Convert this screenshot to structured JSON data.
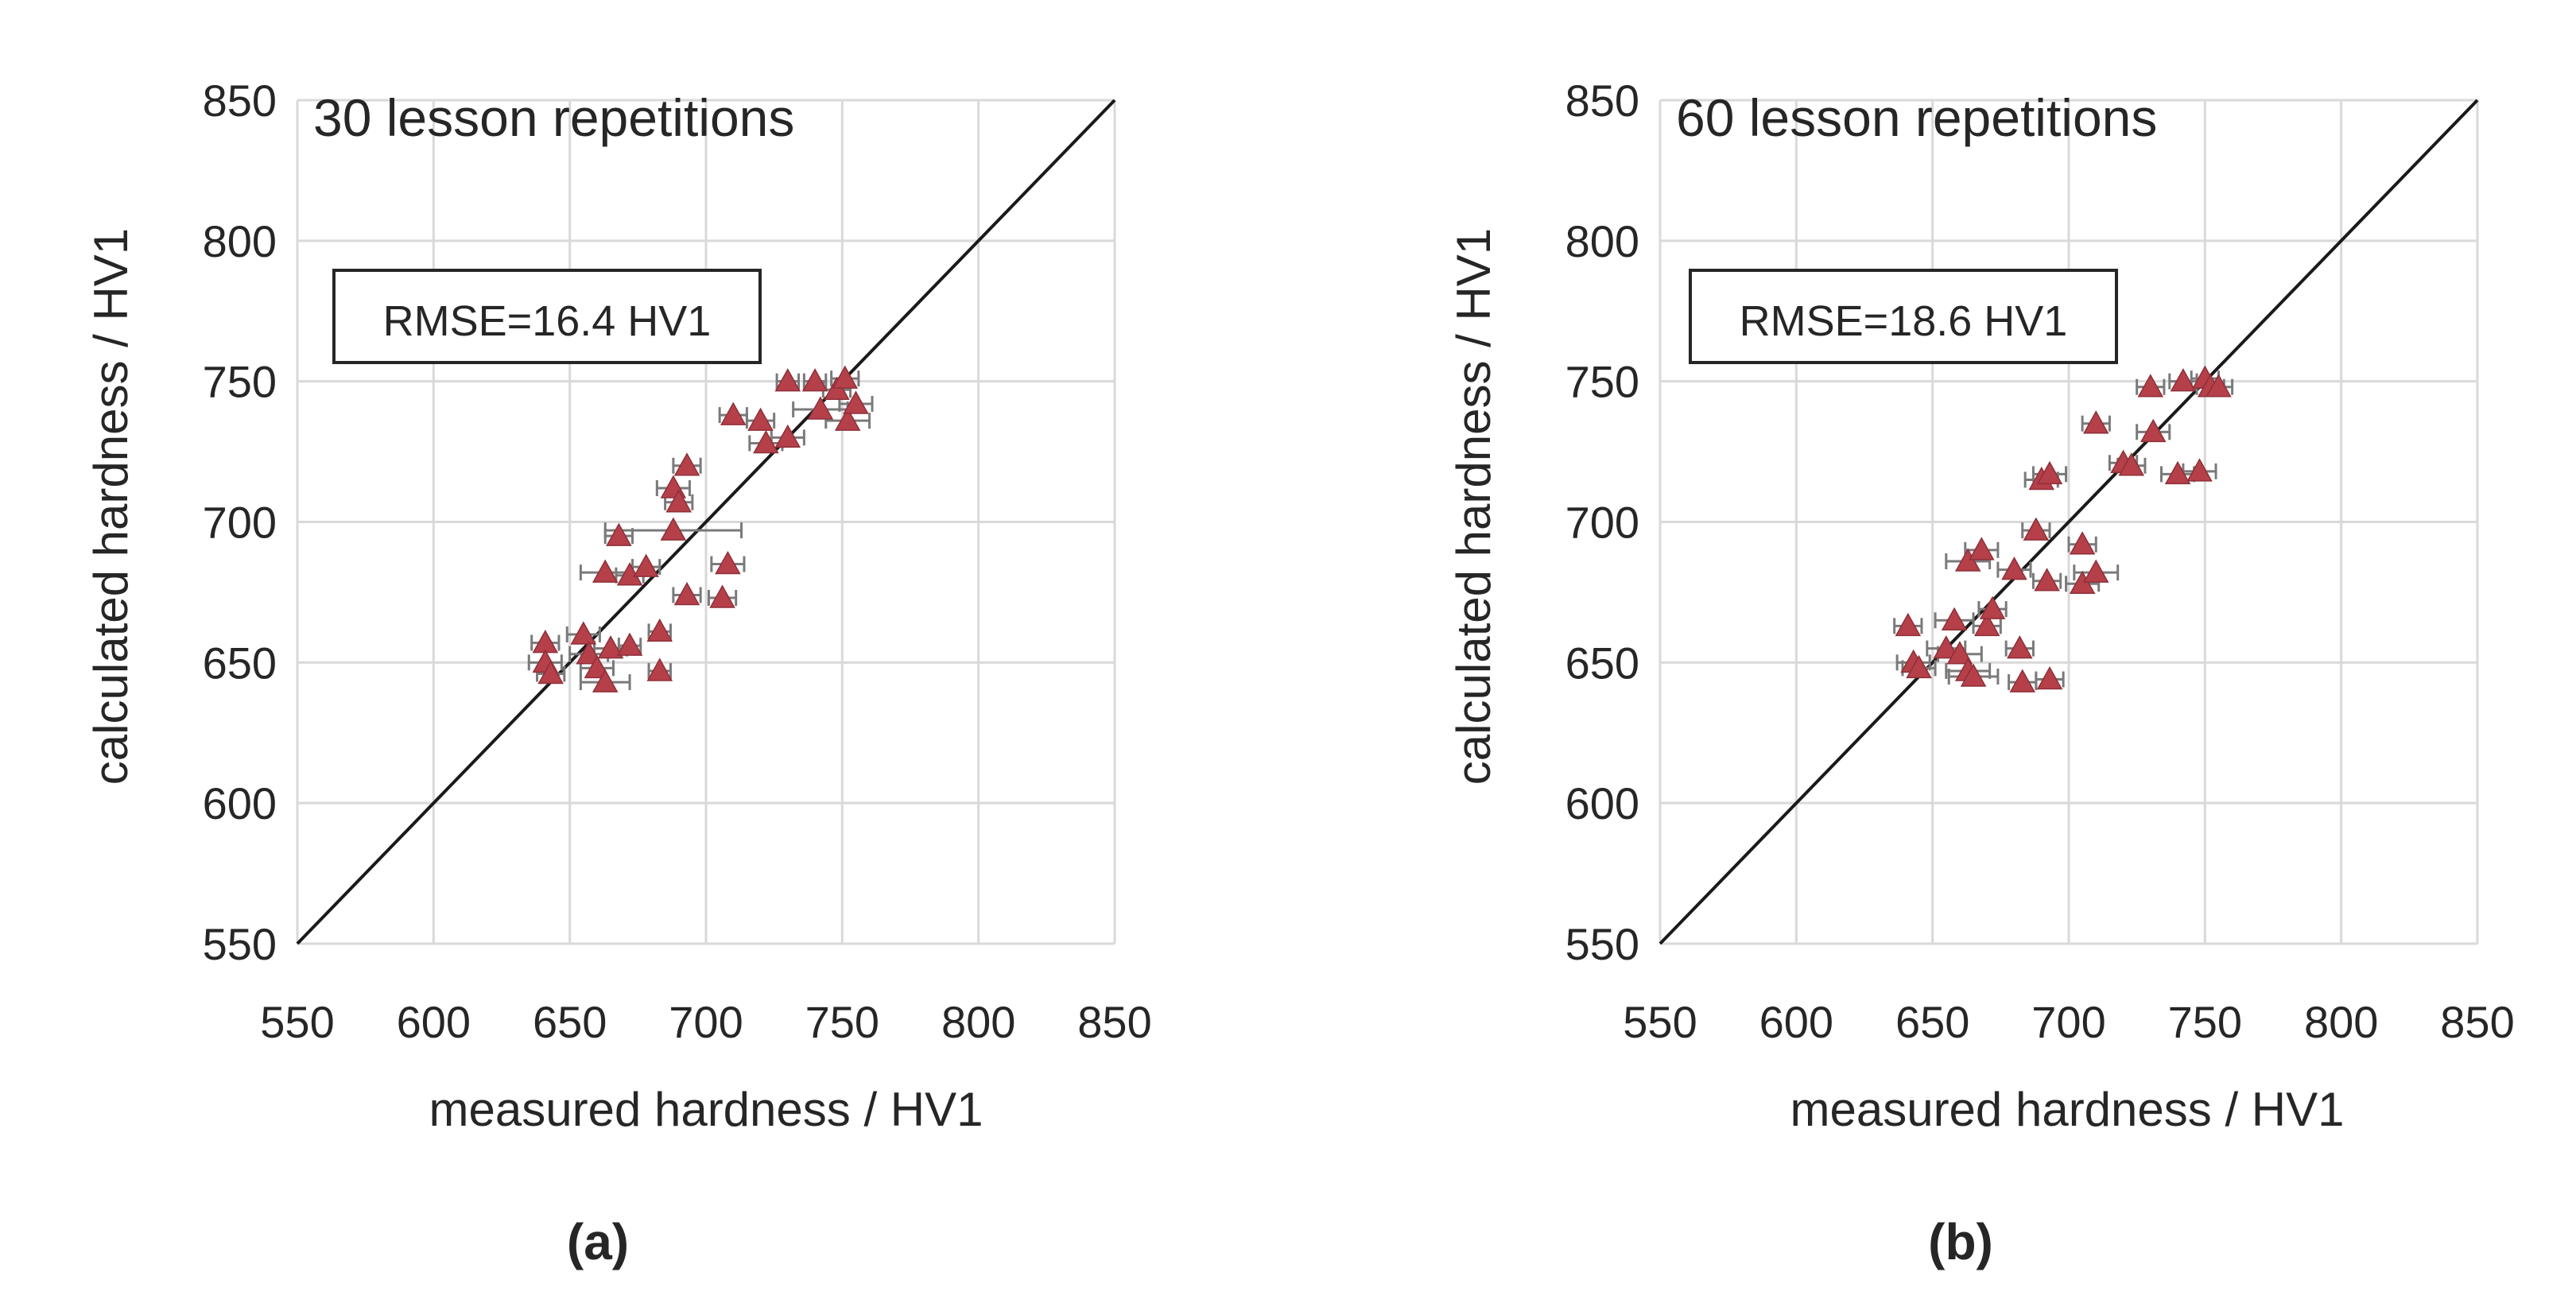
{
  "figure": {
    "panel_labels": [
      "(a)",
      "(b)"
    ]
  },
  "chart_data": [
    {
      "type": "scatter",
      "panel": "(a)",
      "title": "30 lesson repetitions",
      "annotation": "RMSE=16.4 HV1",
      "xlabel": "measured hardness / HV1",
      "ylabel": "calculated hardness / HV1",
      "xlim": [
        550,
        850
      ],
      "ylim": [
        550,
        850
      ],
      "xticks": [
        550,
        600,
        650,
        700,
        750,
        800,
        850
      ],
      "yticks": [
        550,
        600,
        650,
        700,
        750,
        800,
        850
      ],
      "grid": true,
      "reference_line": "y = x",
      "marker": "triangle",
      "marker_color": "#b5404a",
      "error_bar_color": "#7a7a7a",
      "series": [
        {
          "name": "calculated vs measured",
          "points": [
            {
              "x": 641,
              "y": 657,
              "xerr": 5
            },
            {
              "x": 641,
              "y": 650,
              "xerr": 6
            },
            {
              "x": 643,
              "y": 646,
              "xerr": 5
            },
            {
              "x": 655,
              "y": 660,
              "xerr": 6
            },
            {
              "x": 657,
              "y": 653,
              "xerr": 7
            },
            {
              "x": 660,
              "y": 648,
              "xerr": 6
            },
            {
              "x": 663,
              "y": 643,
              "xerr": 9
            },
            {
              "x": 665,
              "y": 655,
              "xerr": 6
            },
            {
              "x": 672,
              "y": 656,
              "xerr": 4
            },
            {
              "x": 683,
              "y": 661,
              "xerr": 4
            },
            {
              "x": 683,
              "y": 647,
              "xerr": 4
            },
            {
              "x": 663,
              "y": 682,
              "xerr": 9
            },
            {
              "x": 668,
              "y": 695,
              "xerr": 5
            },
            {
              "x": 672,
              "y": 681,
              "xerr": 5
            },
            {
              "x": 678,
              "y": 684,
              "xerr": 5
            },
            {
              "x": 688,
              "y": 697,
              "xerr": 25
            },
            {
              "x": 693,
              "y": 674,
              "xerr": 5
            },
            {
              "x": 706,
              "y": 673,
              "xerr": 5
            },
            {
              "x": 708,
              "y": 685,
              "xerr": 6
            },
            {
              "x": 688,
              "y": 712,
              "xerr": 6
            },
            {
              "x": 690,
              "y": 707,
              "xerr": 5
            },
            {
              "x": 693,
              "y": 720,
              "xerr": 5
            },
            {
              "x": 710,
              "y": 738,
              "xerr": 5
            },
            {
              "x": 720,
              "y": 736,
              "xerr": 5
            },
            {
              "x": 722,
              "y": 728,
              "xerr": 6
            },
            {
              "x": 730,
              "y": 730,
              "xerr": 6
            },
            {
              "x": 730,
              "y": 750,
              "xerr": 4
            },
            {
              "x": 740,
              "y": 750,
              "xerr": 4
            },
            {
              "x": 742,
              "y": 740,
              "xerr": 10
            },
            {
              "x": 748,
              "y": 747,
              "xerr": 5
            },
            {
              "x": 751,
              "y": 751,
              "xerr": 5
            },
            {
              "x": 752,
              "y": 736,
              "xerr": 8
            },
            {
              "x": 755,
              "y": 742,
              "xerr": 6
            }
          ]
        }
      ]
    },
    {
      "type": "scatter",
      "panel": "(b)",
      "title": "60 lesson repetitions",
      "annotation": "RMSE=18.6 HV1",
      "xlabel": "measured hardness / HV1",
      "ylabel": "calculated hardness / HV1",
      "xlim": [
        550,
        850
      ],
      "ylim": [
        550,
        850
      ],
      "xticks": [
        550,
        600,
        650,
        700,
        750,
        800,
        850
      ],
      "yticks": [
        550,
        600,
        650,
        700,
        750,
        800,
        850
      ],
      "grid": true,
      "reference_line": "y = x",
      "marker": "triangle",
      "marker_color": "#b5404a",
      "error_bar_color": "#7a7a7a",
      "series": [
        {
          "name": "calculated vs measured",
          "points": [
            {
              "x": 641,
              "y": 663,
              "xerr": 5
            },
            {
              "x": 643,
              "y": 650,
              "xerr": 6
            },
            {
              "x": 645,
              "y": 648,
              "xerr": 6
            },
            {
              "x": 655,
              "y": 655,
              "xerr": 7
            },
            {
              "x": 658,
              "y": 665,
              "xerr": 7
            },
            {
              "x": 660,
              "y": 653,
              "xerr": 8
            },
            {
              "x": 663,
              "y": 647,
              "xerr": 8
            },
            {
              "x": 665,
              "y": 645,
              "xerr": 9
            },
            {
              "x": 670,
              "y": 663,
              "xerr": 5
            },
            {
              "x": 672,
              "y": 669,
              "xerr": 5
            },
            {
              "x": 682,
              "y": 655,
              "xerr": 5
            },
            {
              "x": 683,
              "y": 643,
              "xerr": 5
            },
            {
              "x": 693,
              "y": 644,
              "xerr": 5
            },
            {
              "x": 663,
              "y": 686,
              "xerr": 8
            },
            {
              "x": 668,
              "y": 690,
              "xerr": 6
            },
            {
              "x": 680,
              "y": 683,
              "xerr": 6
            },
            {
              "x": 688,
              "y": 697,
              "xerr": 5
            },
            {
              "x": 692,
              "y": 679,
              "xerr": 5
            },
            {
              "x": 705,
              "y": 678,
              "xerr": 6
            },
            {
              "x": 705,
              "y": 692,
              "xerr": 5
            },
            {
              "x": 710,
              "y": 682,
              "xerr": 8
            },
            {
              "x": 690,
              "y": 715,
              "xerr": 6
            },
            {
              "x": 693,
              "y": 717,
              "xerr": 6
            },
            {
              "x": 710,
              "y": 735,
              "xerr": 5
            },
            {
              "x": 720,
              "y": 721,
              "xerr": 5
            },
            {
              "x": 723,
              "y": 720,
              "xerr": 5
            },
            {
              "x": 731,
              "y": 732,
              "xerr": 6
            },
            {
              "x": 730,
              "y": 748,
              "xerr": 5
            },
            {
              "x": 740,
              "y": 717,
              "xerr": 6
            },
            {
              "x": 742,
              "y": 750,
              "xerr": 5
            },
            {
              "x": 748,
              "y": 718,
              "xerr": 6
            },
            {
              "x": 750,
              "y": 751,
              "xerr": 5
            },
            {
              "x": 752,
              "y": 748,
              "xerr": 5
            },
            {
              "x": 755,
              "y": 748,
              "xerr": 5
            }
          ]
        }
      ]
    }
  ]
}
